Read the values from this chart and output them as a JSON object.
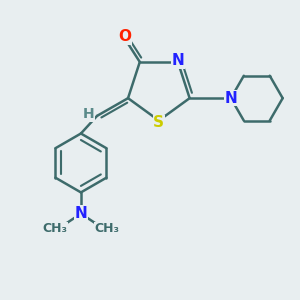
{
  "bg_color": "#e8eef0",
  "bond_color": "#3d6b6b",
  "bond_width": 1.8,
  "atom_colors": {
    "O": "#ff2200",
    "N": "#2222ff",
    "S": "#cccc00",
    "H": "#5a8a8a",
    "C": "#3d6b6b"
  }
}
